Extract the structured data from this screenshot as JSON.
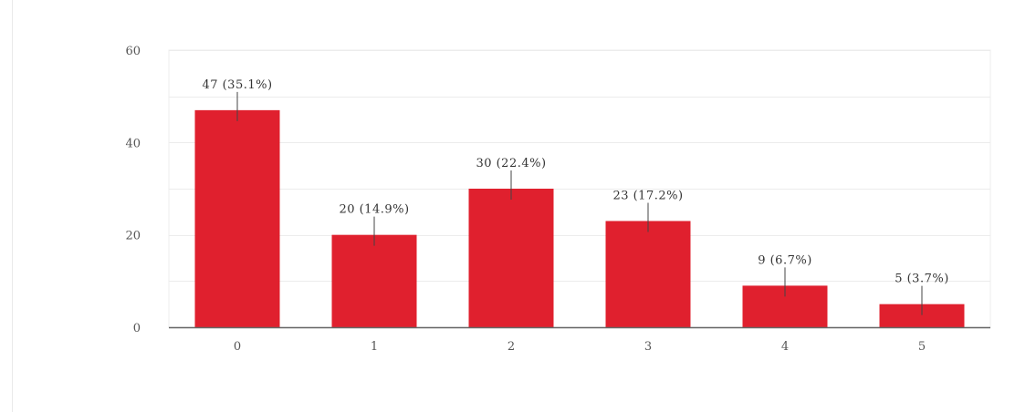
{
  "chart_data": {
    "type": "bar",
    "categories": [
      "0",
      "1",
      "2",
      "3",
      "4",
      "5"
    ],
    "values": [
      47,
      20,
      30,
      23,
      9,
      5
    ],
    "data_labels": [
      "47 (35.1%)",
      "20 (14.9%)",
      "30 (22.4%)",
      "23 (17.2%)",
      "9 (6.7%)",
      "5 (3.7%)"
    ],
    "y_ticks": [
      0,
      20,
      40,
      60
    ],
    "ylim": [
      0,
      60
    ],
    "grid": true,
    "bar_color": "#e0202e",
    "grid_color": "#ececec",
    "axis_color": "#666666"
  }
}
